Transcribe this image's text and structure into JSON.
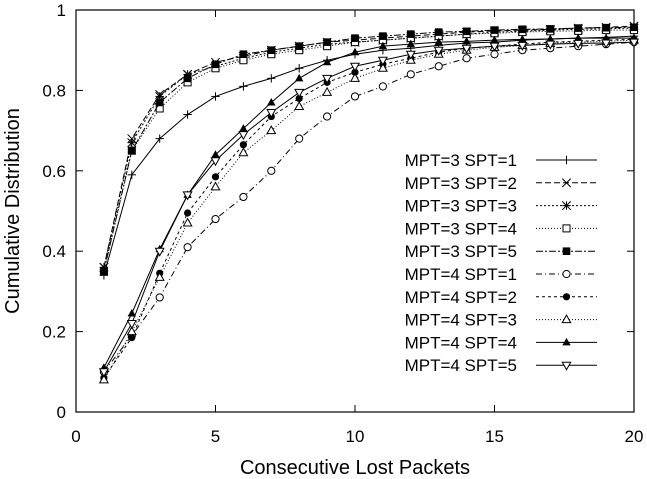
{
  "chart_data": {
    "type": "line",
    "title": "",
    "xlabel": "Consecutive Lost Packets",
    "ylabel": "Cumulative Distribution",
    "xlim": [
      0,
      20
    ],
    "ylim": [
      0,
      1
    ],
    "xticks": [
      0,
      5,
      10,
      15,
      20
    ],
    "xtick_labels": [
      "0",
      "5",
      "10",
      "15",
      "20"
    ],
    "yticks": [
      0,
      0.2,
      0.4,
      0.6,
      0.8,
      1
    ],
    "ytick_labels": [
      "0",
      "0.2",
      "0.4",
      "0.6",
      "0.8",
      "1"
    ],
    "grid": false,
    "legend_position": "bottom-right",
    "x": [
      1,
      2,
      3,
      4,
      5,
      6,
      7,
      8,
      9,
      10,
      11,
      12,
      13,
      14,
      15,
      16,
      17,
      18,
      19,
      20
    ],
    "series": [
      {
        "name": "MPT=3 SPT=1",
        "marker": "plus",
        "dash": "",
        "values": [
          0.34,
          0.59,
          0.68,
          0.74,
          0.785,
          0.81,
          0.83,
          0.855,
          0.875,
          0.89,
          0.9,
          0.905,
          0.912,
          0.918,
          0.92,
          0.925,
          0.928,
          0.93,
          0.932,
          0.935
        ]
      },
      {
        "name": "MPT=3 SPT=2",
        "marker": "x",
        "dash": "6,3",
        "values": [
          0.36,
          0.68,
          0.79,
          0.84,
          0.87,
          0.885,
          0.9,
          0.91,
          0.92,
          0.925,
          0.93,
          0.935,
          0.94,
          0.945,
          0.948,
          0.95,
          0.952,
          0.955,
          0.957,
          0.96
        ]
      },
      {
        "name": "MPT=3 SPT=3",
        "marker": "asterisk",
        "dash": "2,2",
        "values": [
          0.36,
          0.67,
          0.785,
          0.84,
          0.86,
          0.88,
          0.895,
          0.905,
          0.915,
          0.92,
          0.925,
          0.93,
          0.935,
          0.94,
          0.945,
          0.947,
          0.95,
          0.952,
          0.953,
          0.955
        ]
      },
      {
        "name": "MPT=3 SPT=4",
        "marker": "square-open",
        "dash": "1,2",
        "values": [
          0.35,
          0.65,
          0.755,
          0.82,
          0.855,
          0.875,
          0.89,
          0.9,
          0.91,
          0.92,
          0.925,
          0.93,
          0.935,
          0.94,
          0.942,
          0.945,
          0.947,
          0.948,
          0.95,
          0.95
        ]
      },
      {
        "name": "MPT=3 SPT=5",
        "marker": "square-filled",
        "dash": "7,2,2,2",
        "values": [
          0.35,
          0.65,
          0.77,
          0.83,
          0.865,
          0.89,
          0.9,
          0.91,
          0.92,
          0.93,
          0.935,
          0.94,
          0.945,
          0.947,
          0.95,
          0.952,
          0.953,
          0.955,
          0.956,
          0.957
        ]
      },
      {
        "name": "MPT=4 SPT=1",
        "marker": "circle-open",
        "dash": "6,3,1,3",
        "values": [
          0.1,
          0.19,
          0.285,
          0.41,
          0.48,
          0.535,
          0.6,
          0.68,
          0.735,
          0.785,
          0.81,
          0.84,
          0.86,
          0.88,
          0.89,
          0.9,
          0.905,
          0.91,
          0.915,
          0.92
        ]
      },
      {
        "name": "MPT=4 SPT=2",
        "marker": "circle-filled",
        "dash": "3,3",
        "values": [
          0.085,
          0.185,
          0.345,
          0.495,
          0.585,
          0.665,
          0.735,
          0.78,
          0.82,
          0.845,
          0.865,
          0.88,
          0.895,
          0.905,
          0.91,
          0.915,
          0.92,
          0.922,
          0.925,
          0.927
        ]
      },
      {
        "name": "MPT=4 SPT=3",
        "marker": "triangle-open",
        "dash": "1,2",
        "values": [
          0.08,
          0.2,
          0.335,
          0.47,
          0.56,
          0.645,
          0.7,
          0.76,
          0.795,
          0.83,
          0.855,
          0.875,
          0.89,
          0.9,
          0.907,
          0.912,
          0.917,
          0.92,
          0.922,
          0.925
        ]
      },
      {
        "name": "MPT=4 SPT=4",
        "marker": "triangle-filled",
        "dash": "",
        "values": [
          0.11,
          0.245,
          0.405,
          0.54,
          0.64,
          0.705,
          0.77,
          0.83,
          0.87,
          0.895,
          0.91,
          0.915,
          0.92,
          0.922,
          0.925,
          0.927,
          0.928,
          0.93,
          0.93,
          0.93
        ]
      },
      {
        "name": "MPT=4 SPT=5",
        "marker": "triangle-down-open",
        "dash": "",
        "values": [
          0.1,
          0.22,
          0.4,
          0.54,
          0.625,
          0.69,
          0.745,
          0.795,
          0.83,
          0.86,
          0.875,
          0.89,
          0.9,
          0.905,
          0.91,
          0.912,
          0.915,
          0.917,
          0.918,
          0.92
        ]
      }
    ]
  }
}
